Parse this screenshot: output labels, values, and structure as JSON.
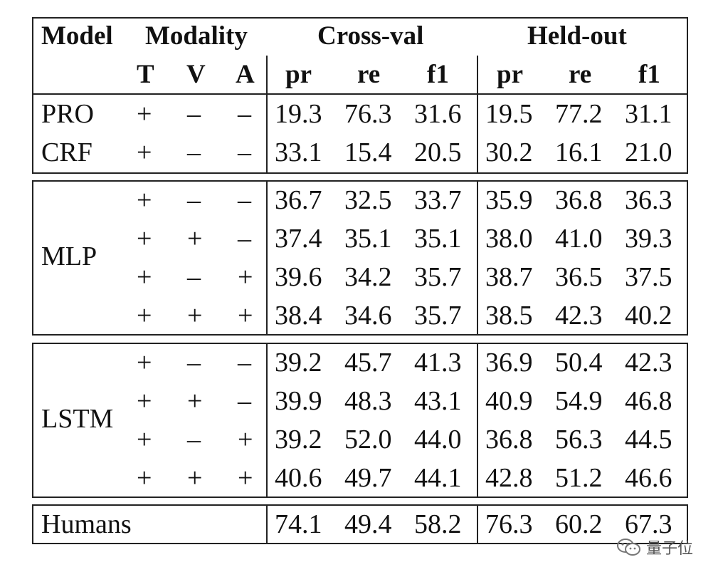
{
  "headers": {
    "model": "Model",
    "modality": "Modality",
    "cross_val": "Cross-val",
    "held_out": "Held-out",
    "t": "T",
    "v": "V",
    "a": "A",
    "pr": "pr",
    "re": "re",
    "f1": "f1"
  },
  "rows": [
    {
      "model": "PRO",
      "t": "+",
      "v": "–",
      "a": "–",
      "cv": [
        "19.3",
        "76.3",
        "31.6"
      ],
      "ho": [
        "19.5",
        "77.2",
        "31.1"
      ]
    },
    {
      "model": "CRF",
      "t": "+",
      "v": "–",
      "a": "–",
      "cv": [
        "33.1",
        "15.4",
        "20.5"
      ],
      "ho": [
        "30.2",
        "16.1",
        "21.0"
      ]
    },
    {
      "model": "",
      "t": "+",
      "v": "–",
      "a": "–",
      "cv": [
        "36.7",
        "32.5",
        "33.7"
      ],
      "ho": [
        "35.9",
        "36.8",
        "36.3"
      ]
    },
    {
      "model": "",
      "t": "+",
      "v": "+",
      "a": "–",
      "cv": [
        "37.4",
        "35.1",
        "35.1"
      ],
      "ho": [
        "38.0",
        "41.0",
        "39.3"
      ]
    },
    {
      "model": "",
      "t": "+",
      "v": "–",
      "a": "+",
      "cv": [
        "39.6",
        "34.2",
        "35.7"
      ],
      "ho": [
        "38.7",
        "36.5",
        "37.5"
      ]
    },
    {
      "model": "",
      "t": "+",
      "v": "+",
      "a": "+",
      "cv": [
        "38.4",
        "34.6",
        "35.7"
      ],
      "ho": [
        "38.5",
        "42.3",
        "40.2"
      ]
    },
    {
      "model": "",
      "t": "+",
      "v": "–",
      "a": "–",
      "cv": [
        "39.2",
        "45.7",
        "41.3"
      ],
      "ho": [
        "36.9",
        "50.4",
        "42.3"
      ]
    },
    {
      "model": "",
      "t": "+",
      "v": "+",
      "a": "–",
      "cv": [
        "39.9",
        "48.3",
        "43.1"
      ],
      "ho": [
        "40.9",
        "54.9",
        "46.8"
      ]
    },
    {
      "model": "",
      "t": "+",
      "v": "–",
      "a": "+",
      "cv": [
        "39.2",
        "52.0",
        "44.0"
      ],
      "ho": [
        "36.8",
        "56.3",
        "44.5"
      ]
    },
    {
      "model": "",
      "t": "+",
      "v": "+",
      "a": "+",
      "cv": [
        "40.6",
        "49.7",
        "44.1"
      ],
      "ho": [
        "42.8",
        "51.2",
        "46.6"
      ]
    },
    {
      "model": "Humans",
      "t": "",
      "v": "",
      "a": "",
      "cv": [
        "74.1",
        "49.4",
        "58.2"
      ],
      "ho": [
        "76.3",
        "60.2",
        "67.3"
      ]
    }
  ],
  "group_labels": {
    "mlp": "MLP",
    "lstm": "LSTM"
  },
  "watermark": {
    "icon": "wechat-icon",
    "text": "量子位"
  }
}
